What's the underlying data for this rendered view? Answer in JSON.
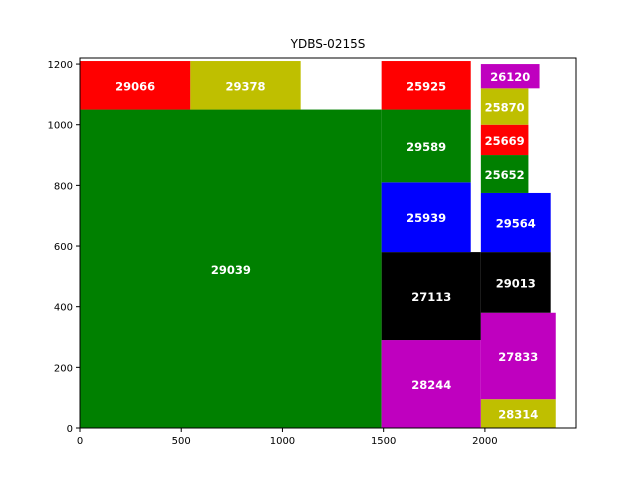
{
  "chart_data": {
    "type": "bar",
    "subtype": "rectangle-packing",
    "title": "YDBS-0215S",
    "xlabel": "",
    "ylabel": "",
    "xlim": [
      0,
      2450
    ],
    "ylim": [
      0,
      1220
    ],
    "xticks": [
      0,
      500,
      1000,
      1500,
      2000
    ],
    "yticks": [
      0,
      200,
      400,
      600,
      800,
      1000,
      1200
    ],
    "grid": false,
    "colors": {
      "green": "#008000",
      "red": "#ff0000",
      "olive": "#bfbf00",
      "blue": "#0000ff",
      "black": "#000000",
      "magenta": "#bf00bf"
    },
    "rectangles": [
      {
        "label": "29039",
        "x": 0,
        "y": 0,
        "w": 1490,
        "h": 1050,
        "color": "green"
      },
      {
        "label": "29066",
        "x": 0,
        "y": 1050,
        "w": 545,
        "h": 160,
        "color": "red"
      },
      {
        "label": "29378",
        "x": 545,
        "y": 1050,
        "w": 545,
        "h": 160,
        "color": "olive"
      },
      {
        "label": "28244",
        "x": 1490,
        "y": 0,
        "w": 490,
        "h": 290,
        "color": "magenta"
      },
      {
        "label": "27113",
        "x": 1490,
        "y": 290,
        "w": 490,
        "h": 290,
        "color": "black"
      },
      {
        "label": "25939",
        "x": 1490,
        "y": 580,
        "w": 440,
        "h": 230,
        "color": "blue"
      },
      {
        "label": "29589",
        "x": 1490,
        "y": 810,
        "w": 440,
        "h": 240,
        "color": "green"
      },
      {
        "label": "25925",
        "x": 1490,
        "y": 1050,
        "w": 440,
        "h": 160,
        "color": "red"
      },
      {
        "label": "28314",
        "x": 1980,
        "y": 0,
        "w": 370,
        "h": 95,
        "color": "olive"
      },
      {
        "label": "27833",
        "x": 1980,
        "y": 95,
        "w": 370,
        "h": 285,
        "color": "magenta"
      },
      {
        "label": "29013",
        "x": 1980,
        "y": 380,
        "w": 345,
        "h": 200,
        "color": "black"
      },
      {
        "label": "29564",
        "x": 1980,
        "y": 580,
        "w": 345,
        "h": 195,
        "color": "blue"
      },
      {
        "label": "25652",
        "x": 1980,
        "y": 775,
        "w": 235,
        "h": 125,
        "color": "green"
      },
      {
        "label": "25669",
        "x": 1980,
        "y": 900,
        "w": 235,
        "h": 100,
        "color": "red"
      },
      {
        "label": "25870",
        "x": 1980,
        "y": 1000,
        "w": 235,
        "h": 120,
        "color": "olive"
      },
      {
        "label": "26120",
        "x": 1980,
        "y": 1120,
        "w": 290,
        "h": 80,
        "color": "magenta"
      }
    ]
  }
}
